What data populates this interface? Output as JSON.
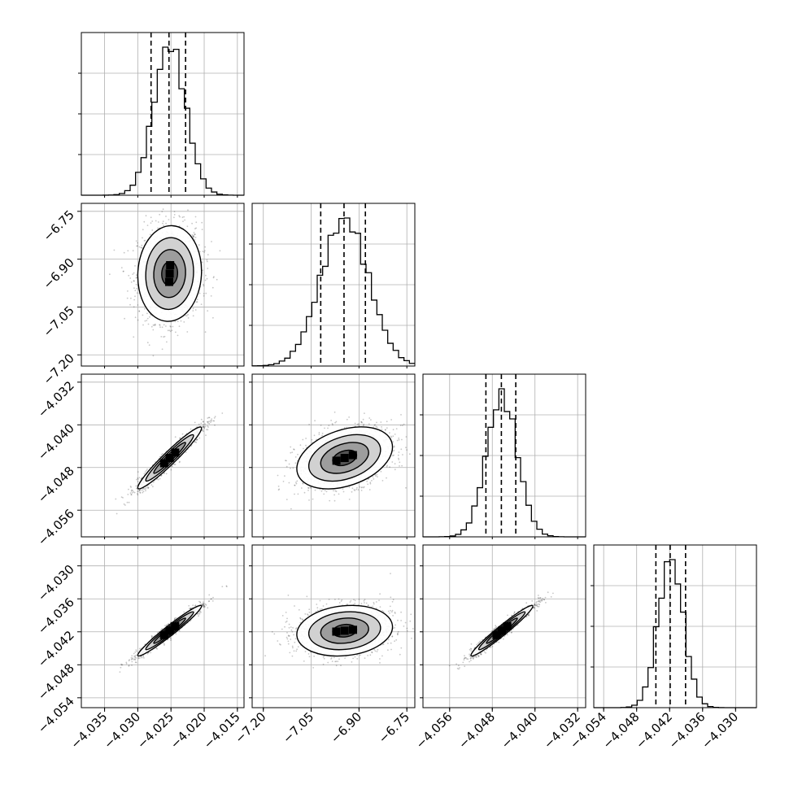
{
  "chart_data": {
    "type": "corner",
    "grid": true,
    "quantile_lines": "dashed",
    "colors": {
      "line": "#000000",
      "grid": "#b0b0b0",
      "density_dark": "#000000",
      "density_light": "#ffffff"
    },
    "params": [
      {
        "key": "p0",
        "ticks": [
          -4.035,
          -4.03,
          -4.025,
          -4.02,
          -4.015
        ],
        "tick_labels": [
          "−4.035",
          "−4.030",
          "−4.025",
          "−4.020",
          "−4.015"
        ],
        "range": [
          -4.0385,
          -4.014
        ],
        "mean": -4.0252,
        "sigma": 0.0024,
        "quantiles": [
          -4.028,
          -4.0253,
          -4.0228
        ]
      },
      {
        "key": "p1",
        "ticks": [
          -7.2,
          -7.05,
          -6.9,
          -6.75
        ],
        "tick_labels": [
          "−7.20",
          "−7.05",
          "−6.90",
          "−6.75"
        ],
        "range": [
          -7.235,
          -6.725
        ],
        "mean": -6.945,
        "sigma": 0.075,
        "quantiles": [
          -7.02,
          -6.947,
          -6.88
        ]
      },
      {
        "key": "p2",
        "ticks": [
          -4.056,
          -4.048,
          -4.04,
          -4.032
        ],
        "tick_labels": [
          "−4.056",
          "−4.048",
          "−4.040",
          "−4.032"
        ],
        "range": [
          -4.061,
          -4.0305
        ],
        "mean": -4.0462,
        "sigma": 0.0029,
        "quantiles": [
          -4.0492,
          -4.0463,
          -4.0436
        ]
      },
      {
        "key": "p3",
        "ticks": [
          -4.054,
          -4.048,
          -4.042,
          -4.036,
          -4.03
        ],
        "tick_labels": [
          "−4.054",
          "−4.048",
          "−4.042",
          "−4.036",
          "−4.030"
        ],
        "range": [
          -4.0558,
          -4.0262
        ],
        "mean": -4.0418,
        "sigma": 0.0023,
        "quantiles": [
          -4.0445,
          -4.0419,
          -4.0391
        ]
      }
    ],
    "correlations": {
      "1-0": 0.05,
      "2-0": 0.96,
      "2-1": 0.35,
      "3-0": 0.97,
      "3-1": 0.15,
      "3-2": 0.97
    },
    "contour_levels_sigma": [
      0.5,
      1.0,
      1.5,
      2.0
    ]
  }
}
